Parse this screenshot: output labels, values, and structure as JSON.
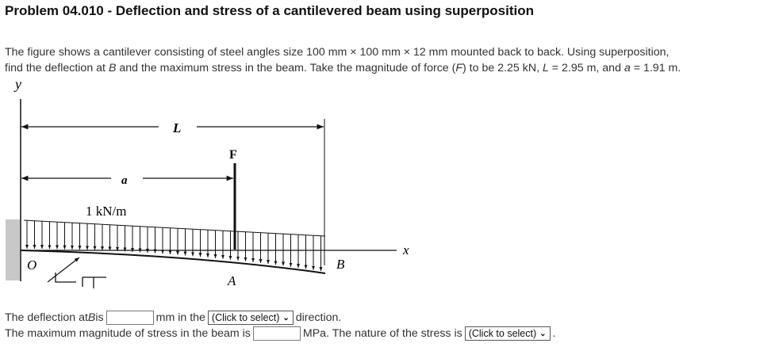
{
  "title": "Problem 04.010 - Deflection and stress of a cantilevered beam using superposition",
  "problem": {
    "line1": "The figure shows a cantilever consisting of steel angles size 100 mm × 100 mm × 12 mm mounted back to back. Using superposition,",
    "line2_a": "find the deflection at ",
    "line2_B": "B",
    "line2_b": " and the maximum stress in the beam. Take the magnitude of force (",
    "line2_F": "F",
    "line2_c": ") to be 2.25 kN, ",
    "line2_L": "L",
    "line2_d": " = 2.95 m, and ",
    "line2_a_var": "a",
    "line2_e": " = 1.91 m."
  },
  "figure": {
    "y_label": "y",
    "x_label": "x",
    "L_label": "L",
    "a_label": "a",
    "F_label": "F",
    "load_label": "1 kN/m",
    "O_label": "O",
    "A_label": "A",
    "B_label": "B"
  },
  "q1": {
    "prefix": "The deflection at ",
    "var": "B",
    "is": " is",
    "unit": "mm in the",
    "select_value": "(Click to select)",
    "suffix": "direction."
  },
  "q2": {
    "prefix": "The maximum magnitude of stress in the beam is",
    "unit": "MPa. The nature of the stress is",
    "select_value": "(Click to select)",
    "suffix": "."
  }
}
